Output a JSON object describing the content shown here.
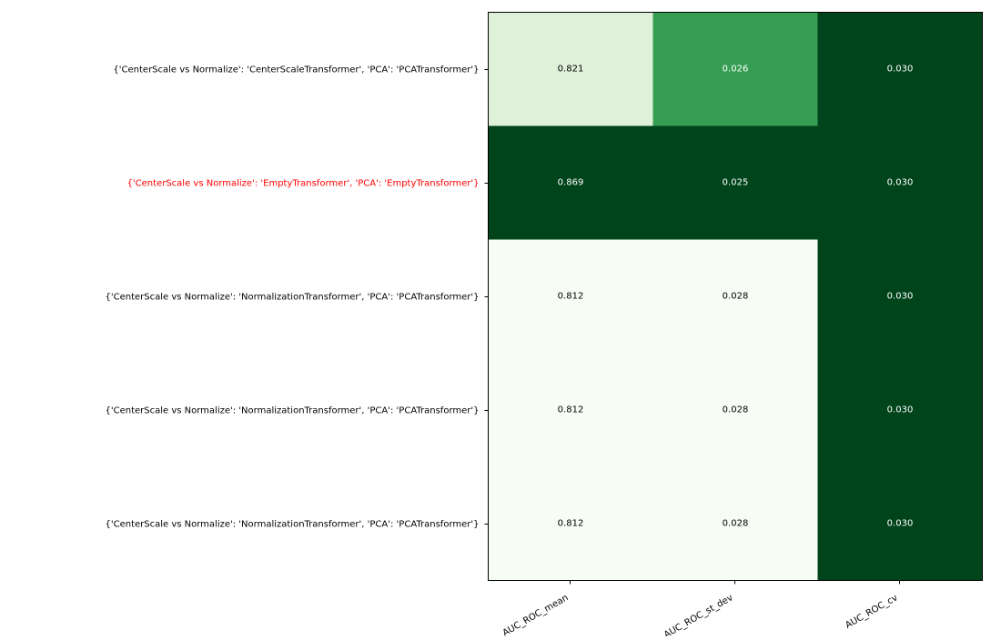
{
  "chart_data": {
    "type": "heatmap",
    "title": "",
    "xlabel": "",
    "ylabel": "",
    "columns": [
      "AUC_ROC_mean",
      "AUC_ROC_st_dev",
      "AUC_ROC_cv"
    ],
    "rows": [
      {
        "label": "{'CenterScale vs Normalize': 'CenterScaleTransformer', 'PCA': 'PCATransformer'}",
        "highlighted": false,
        "values": [
          "0.821",
          "0.026",
          "0.030"
        ],
        "cell_colors": [
          "#dff1d9",
          "#359e53",
          "#00441b"
        ],
        "text_colors": [
          "#000000",
          "#ffffff",
          "#ffffff"
        ]
      },
      {
        "label": "{'CenterScale vs Normalize': 'EmptyTransformer', 'PCA': 'EmptyTransformer'}",
        "highlighted": true,
        "values": [
          "0.869",
          "0.025",
          "0.030"
        ],
        "cell_colors": [
          "#00441b",
          "#00441b",
          "#00441b"
        ],
        "text_colors": [
          "#ffffff",
          "#ffffff",
          "#ffffff"
        ]
      },
      {
        "label": "{'CenterScale vs Normalize': 'NormalizationTransformer', 'PCA': 'PCATransformer'}",
        "highlighted": false,
        "values": [
          "0.812",
          "0.028",
          "0.030"
        ],
        "cell_colors": [
          "#f7fcf5",
          "#f7fcf5",
          "#00441b"
        ],
        "text_colors": [
          "#000000",
          "#000000",
          "#ffffff"
        ]
      },
      {
        "label": "{'CenterScale vs Normalize': 'NormalizationTransformer', 'PCA': 'PCATransformer'}",
        "highlighted": false,
        "values": [
          "0.812",
          "0.028",
          "0.030"
        ],
        "cell_colors": [
          "#f7fcf5",
          "#f7fcf5",
          "#00441b"
        ],
        "text_colors": [
          "#000000",
          "#000000",
          "#ffffff"
        ]
      },
      {
        "label": "{'CenterScale vs Normalize': 'NormalizationTransformer', 'PCA': 'PCATransformer'}",
        "highlighted": false,
        "values": [
          "0.812",
          "0.028",
          "0.030"
        ],
        "cell_colors": [
          "#f7fcf5",
          "#f7fcf5",
          "#00441b"
        ],
        "text_colors": [
          "#000000",
          "#000000",
          "#ffffff"
        ]
      }
    ],
    "colormap": "Greens",
    "highlight_label_color": "#ff0000",
    "label_color": "#000000",
    "grid": false,
    "legend": "none"
  }
}
